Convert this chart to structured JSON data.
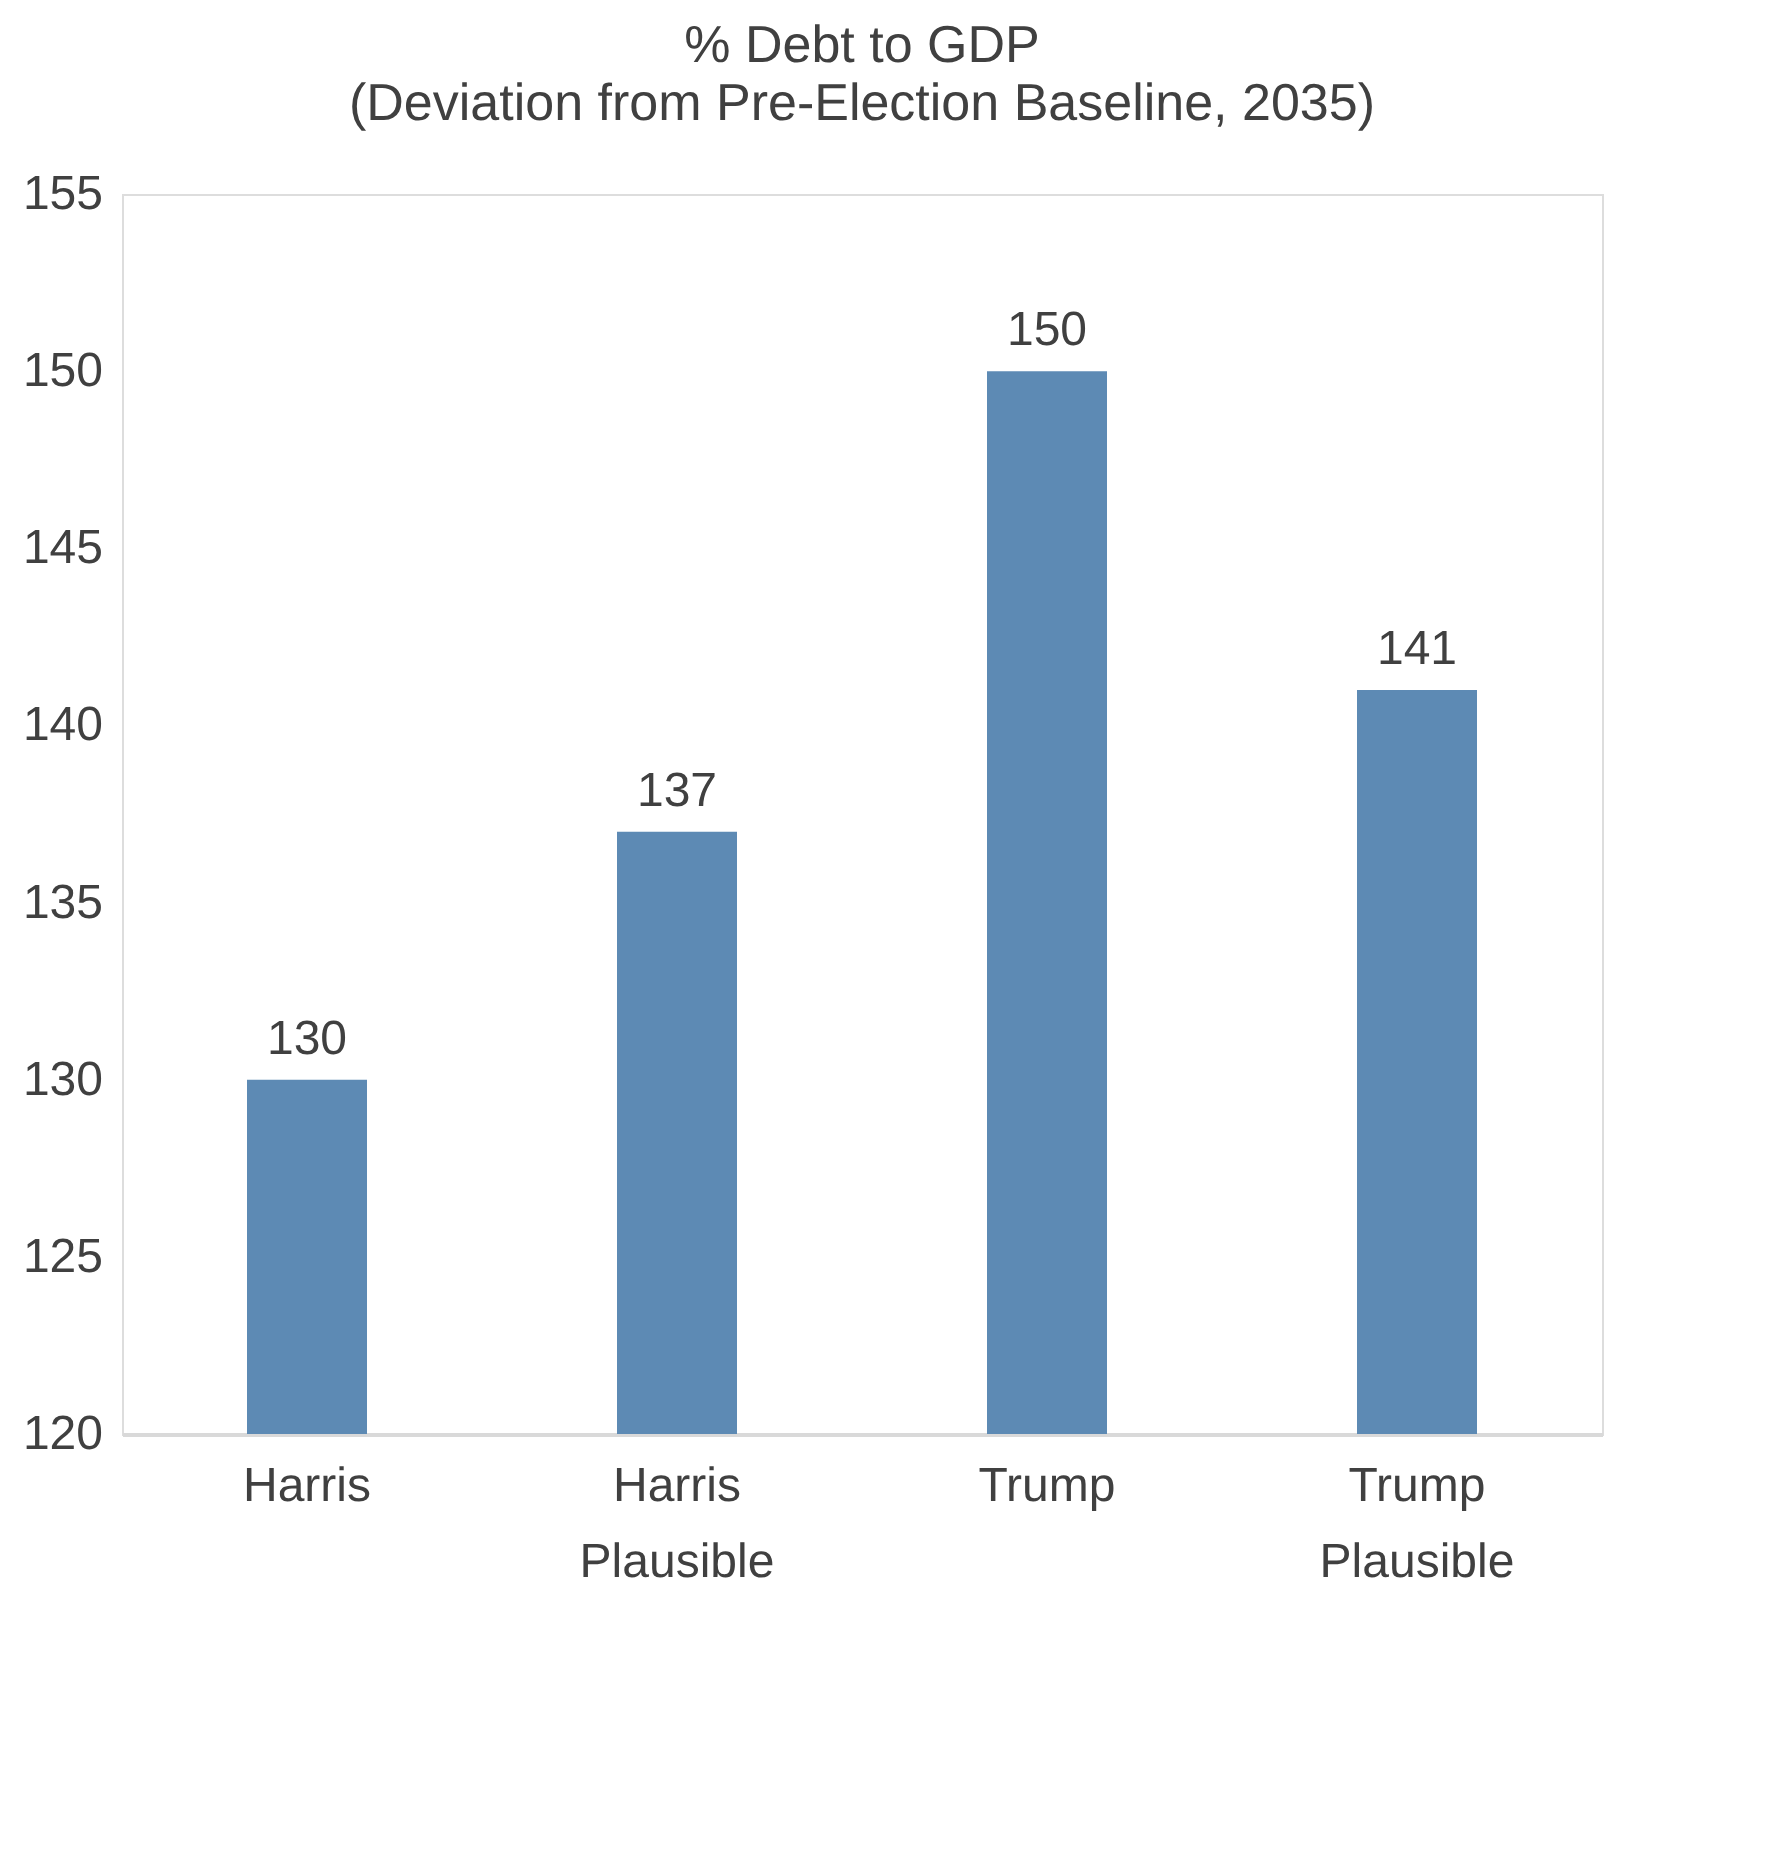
{
  "chart_data": {
    "type": "bar",
    "title": "% Debt to GDP",
    "subtitle": "(Deviation from Pre-Election Baseline, 2035)",
    "categories": [
      "Harris",
      "Harris Plausible",
      "Trump",
      "Trump Plausible"
    ],
    "values": [
      130,
      137,
      150,
      141
    ],
    "color": "#5d8ab4",
    "ylim": [
      120,
      155
    ],
    "yticks": [
      120,
      125,
      130,
      135,
      140,
      145,
      150,
      155
    ],
    "grid": false,
    "data_labels": true
  }
}
